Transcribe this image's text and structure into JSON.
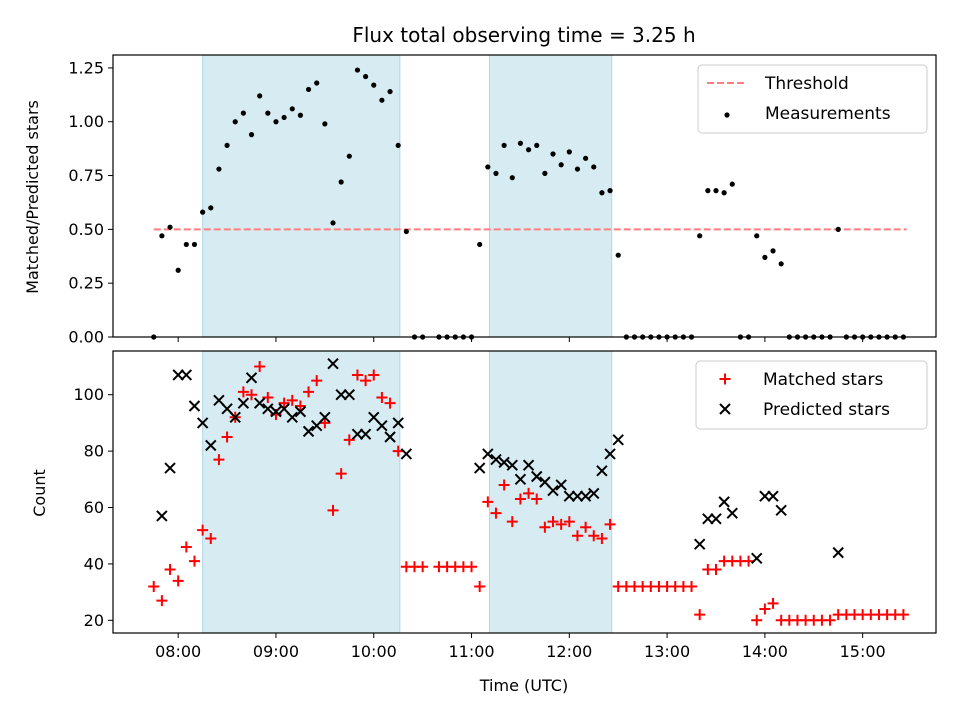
{
  "title": "Flux total observing time = 3.25 h",
  "chart_data": [
    {
      "type": "scatter",
      "xlabel": "",
      "ylabel": "Matched/Predicted stars",
      "ylim": [
        0,
        1.31
      ],
      "xlim": [
        "07:20",
        "15:45"
      ],
      "yticks": [
        0,
        0.25,
        0.5,
        0.75,
        1.0,
        1.25
      ],
      "ytick_labels": [
        "0.00",
        "0.25",
        "0.50",
        "0.75",
        "1.00",
        "1.25"
      ],
      "legend_position": "upper right",
      "shaded_intervals": [
        [
          "08:15",
          "10:16"
        ],
        [
          "11:11",
          "12:26"
        ]
      ],
      "threshold": {
        "name": "Threshold",
        "value": 0.5,
        "x_range": [
          "07:45",
          "15:27"
        ],
        "color": "#ff7f7f"
      },
      "series": [
        {
          "name": "Measurements",
          "color": "#000000",
          "marker": "dot",
          "x": [
            "07:45",
            "07:50",
            "07:55",
            "08:00",
            "08:05",
            "08:10",
            "08:15",
            "08:20",
            "08:25",
            "08:30",
            "08:35",
            "08:40",
            "08:45",
            "08:50",
            "08:55",
            "09:00",
            "09:05",
            "09:10",
            "09:15",
            "09:20",
            "09:25",
            "09:30",
            "09:35",
            "09:40",
            "09:45",
            "09:50",
            "09:55",
            "10:00",
            "10:05",
            "10:10",
            "10:15",
            "10:20",
            "10:25",
            "10:30",
            "10:40",
            "10:45",
            "10:50",
            "10:55",
            "11:00",
            "11:05",
            "11:10",
            "11:15",
            "11:20",
            "11:25",
            "11:30",
            "11:35",
            "11:40",
            "11:45",
            "11:50",
            "11:55",
            "12:00",
            "12:05",
            "12:10",
            "12:15",
            "12:20",
            "12:25",
            "12:30",
            "12:35",
            "12:40",
            "12:45",
            "12:50",
            "12:55",
            "13:00",
            "13:05",
            "13:10",
            "13:15",
            "13:20",
            "13:25",
            "13:30",
            "13:35",
            "13:40",
            "13:45",
            "13:50",
            "13:55",
            "14:00",
            "14:05",
            "14:10",
            "14:15",
            "14:20",
            "14:25",
            "14:30",
            "14:35",
            "14:40",
            "14:45",
            "14:50",
            "14:55",
            "15:00",
            "15:05",
            "15:10",
            "15:15",
            "15:20",
            "15:25"
          ],
          "y": [
            0.0,
            0.47,
            0.51,
            0.31,
            0.43,
            0.43,
            0.58,
            0.6,
            0.78,
            0.89,
            1.0,
            1.04,
            0.94,
            1.12,
            1.04,
            1.0,
            1.02,
            1.06,
            1.03,
            1.15,
            1.18,
            0.99,
            0.53,
            0.72,
            0.84,
            1.24,
            1.21,
            1.17,
            1.1,
            1.14,
            0.89,
            0.49,
            0.0,
            0.0,
            0.0,
            0.0,
            0.0,
            0.0,
            0.0,
            0.43,
            0.79,
            0.76,
            0.89,
            0.74,
            0.9,
            0.87,
            0.89,
            0.76,
            0.85,
            0.8,
            0.86,
            0.78,
            0.83,
            0.79,
            0.67,
            0.68,
            0.38,
            0.0,
            0.0,
            0.0,
            0.0,
            0.0,
            0.0,
            0.0,
            0.0,
            0.0,
            0.47,
            0.68,
            0.68,
            0.67,
            0.71,
            0.0,
            0.0,
            0.47,
            0.37,
            0.4,
            0.34,
            0.0,
            0.0,
            0.0,
            0.0,
            0.0,
            0.0,
            0.5,
            0.0,
            0.0,
            0.0,
            0.0,
            0.0,
            0.0,
            0.0,
            0.0
          ]
        }
      ]
    },
    {
      "type": "scatter",
      "xlabel": "Time (UTC)",
      "ylabel": "Count",
      "ylim": [
        15.5,
        115.5
      ],
      "xlim": [
        "07:20",
        "15:45"
      ],
      "yticks": [
        20,
        40,
        60,
        80,
        100
      ],
      "ytick_labels": [
        "20",
        "40",
        "60",
        "80",
        "100"
      ],
      "xticks": [
        "08:00",
        "09:00",
        "10:00",
        "11:00",
        "12:00",
        "13:00",
        "14:00",
        "15:00"
      ],
      "legend_position": "upper right",
      "shaded_intervals": [
        [
          "08:15",
          "10:16"
        ],
        [
          "11:11",
          "12:26"
        ]
      ],
      "series": [
        {
          "name": "Matched stars",
          "color": "#ff0000",
          "marker": "plus",
          "x": [
            "07:45",
            "07:50",
            "07:55",
            "08:00",
            "08:05",
            "08:10",
            "08:15",
            "08:20",
            "08:25",
            "08:30",
            "08:35",
            "08:40",
            "08:45",
            "08:50",
            "08:55",
            "09:00",
            "09:05",
            "09:10",
            "09:15",
            "09:20",
            "09:25",
            "09:30",
            "09:35",
            "09:40",
            "09:45",
            "09:50",
            "09:55",
            "10:00",
            "10:05",
            "10:10",
            "10:15",
            "10:20",
            "10:25",
            "10:30",
            "10:40",
            "10:45",
            "10:50",
            "10:55",
            "11:00",
            "11:05",
            "11:10",
            "11:15",
            "11:20",
            "11:25",
            "11:30",
            "11:35",
            "11:40",
            "11:45",
            "11:50",
            "11:55",
            "12:00",
            "12:05",
            "12:10",
            "12:15",
            "12:20",
            "12:25",
            "12:30",
            "12:35",
            "12:40",
            "12:45",
            "12:50",
            "12:55",
            "13:00",
            "13:05",
            "13:10",
            "13:15",
            "13:20",
            "13:25",
            "13:30",
            "13:35",
            "13:40",
            "13:45",
            "13:50",
            "13:55",
            "14:00",
            "14:05",
            "14:10",
            "14:15",
            "14:20",
            "14:25",
            "14:30",
            "14:35",
            "14:40",
            "14:45",
            "14:50",
            "14:55",
            "15:00",
            "15:05",
            "15:10",
            "15:15",
            "15:20",
            "15:25"
          ],
          "y": [
            32,
            27,
            38,
            34,
            46,
            41,
            52,
            49,
            77,
            85,
            92,
            101,
            100,
            110,
            99,
            93,
            97,
            98,
            96,
            101,
            105,
            90,
            59,
            72,
            84,
            107,
            105,
            107,
            99,
            97,
            80,
            39,
            39,
            39,
            39,
            39,
            39,
            39,
            39,
            32,
            62,
            58,
            68,
            55,
            63,
            65,
            63,
            53,
            55,
            54,
            55,
            50,
            53,
            50,
            49,
            54,
            32,
            32,
            32,
            32,
            32,
            32,
            32,
            32,
            32,
            32,
            22,
            38,
            38,
            41,
            41,
            41,
            41,
            20,
            24,
            26,
            20,
            20,
            20,
            20,
            20,
            20,
            20,
            22,
            22,
            22,
            22,
            22,
            22,
            22,
            22,
            22
          ]
        },
        {
          "name": "Predicted stars",
          "color": "#000000",
          "marker": "x",
          "x": [
            "07:50",
            "07:55",
            "08:00",
            "08:05",
            "08:10",
            "08:15",
            "08:20",
            "08:25",
            "08:30",
            "08:35",
            "08:40",
            "08:45",
            "08:50",
            "08:55",
            "09:00",
            "09:05",
            "09:10",
            "09:15",
            "09:20",
            "09:25",
            "09:30",
            "09:35",
            "09:40",
            "09:45",
            "09:50",
            "09:55",
            "10:00",
            "10:05",
            "10:10",
            "10:15",
            "10:20",
            "11:05",
            "11:10",
            "11:15",
            "11:20",
            "11:25",
            "11:30",
            "11:35",
            "11:40",
            "11:45",
            "11:50",
            "11:55",
            "12:00",
            "12:05",
            "12:10",
            "12:15",
            "12:20",
            "12:25",
            "12:30",
            "13:20",
            "13:25",
            "13:30",
            "13:35",
            "13:40",
            "13:55",
            "14:00",
            "14:05",
            "14:10",
            "14:45"
          ],
          "y": [
            57,
            74,
            107,
            107,
            96,
            90,
            82,
            98,
            95,
            92,
            97,
            106,
            97,
            95,
            94,
            95,
            92,
            94,
            87,
            89,
            92,
            111,
            100,
            100,
            86,
            86,
            92,
            89,
            85,
            90,
            79,
            74,
            79,
            77,
            76,
            75,
            70,
            75,
            71,
            69,
            66,
            68,
            64,
            64,
            64,
            65,
            73,
            79,
            84,
            47,
            56,
            56,
            62,
            58,
            42,
            64,
            64,
            59,
            44
          ]
        }
      ]
    }
  ]
}
